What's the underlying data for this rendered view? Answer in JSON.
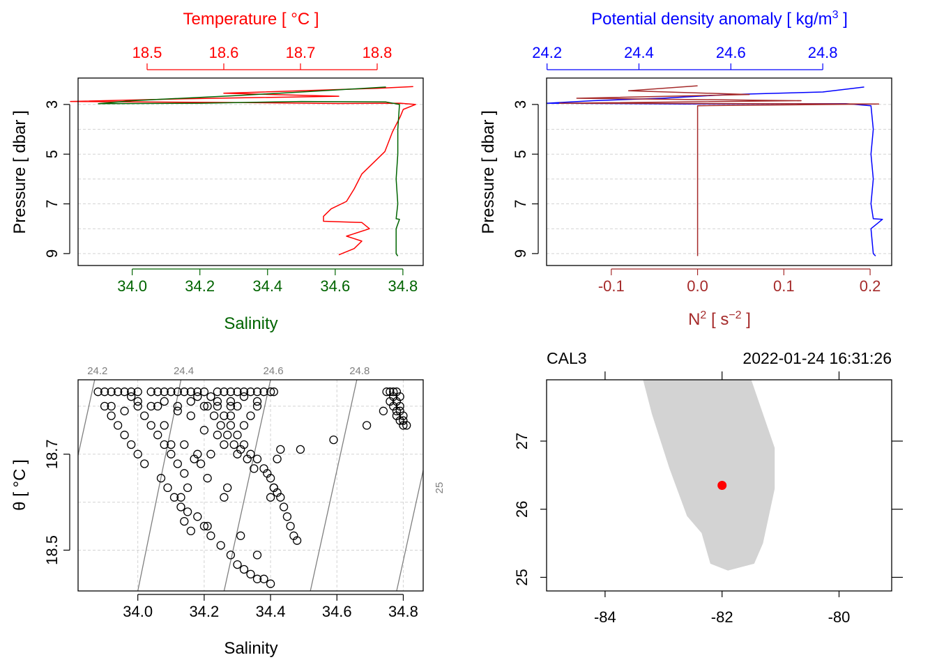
{
  "colors": {
    "temperature": "#ff0000",
    "salinity": "#006400",
    "density": "#0000ff",
    "n2": "#a52a2a",
    "grid": "#d3d3d3",
    "isopycnal": "#7f7f7f",
    "land": "#d3d3d3",
    "station": "#ff0000"
  },
  "chart_data": [
    {
      "type": "line",
      "id": "ts-profile",
      "title": "Temperature [ °C ]",
      "top_axis": {
        "label": "Temperature [ °C ]",
        "range": [
          18.41,
          18.86
        ],
        "ticks": [
          18.5,
          18.6,
          18.7,
          18.8
        ],
        "tick_labels": [
          "18.5",
          "18.6",
          "18.7",
          "18.8"
        ]
      },
      "bottom_axis": {
        "label": "Salinity",
        "range": [
          33.84,
          34.86
        ],
        "ticks": [
          34.0,
          34.2,
          34.4,
          34.6,
          34.8
        ],
        "tick_labels": [
          "34.0",
          "34.2",
          "34.4",
          "34.6",
          "34.8"
        ]
      },
      "y_axis": {
        "label": "Pressure [ dbar ]",
        "range": [
          9.2,
          2.05
        ],
        "inverted": true,
        "ticks": [
          3,
          5,
          7,
          9
        ],
        "tick_labels": [
          "3",
          "5",
          "7",
          "9"
        ],
        "grid": [
          3,
          4,
          5,
          6,
          7,
          8,
          9
        ]
      },
      "series": [
        {
          "name": "Temperature",
          "color": "#ff0000",
          "points": [
            [
              18.847,
              2.28
            ],
            [
              18.8,
              2.35
            ],
            [
              18.6,
              2.55
            ],
            [
              18.75,
              2.67
            ],
            [
              18.55,
              2.77
            ],
            [
              18.4,
              2.88
            ],
            [
              18.6,
              2.92
            ],
            [
              18.75,
              2.96
            ],
            [
              18.83,
              2.95
            ],
            [
              18.85,
              3.0
            ],
            [
              18.834,
              3.2
            ],
            [
              18.83,
              3.5
            ],
            [
              18.82,
              4.1
            ],
            [
              18.81,
              4.9
            ],
            [
              18.8,
              5.2
            ],
            [
              18.78,
              5.8
            ],
            [
              18.775,
              6.1
            ],
            [
              18.77,
              6.4
            ],
            [
              18.76,
              6.9
            ],
            [
              18.74,
              7.2
            ],
            [
              18.73,
              7.5
            ],
            [
              18.73,
              7.7
            ],
            [
              18.78,
              7.75
            ],
            [
              18.79,
              8.0
            ],
            [
              18.76,
              8.3
            ],
            [
              18.78,
              8.5
            ],
            [
              18.77,
              8.8
            ],
            [
              18.75,
              9.05
            ]
          ]
        },
        {
          "name": "Salinity",
          "color": "#006400",
          "points": [
            [
              34.75,
              2.3
            ],
            [
              34.5,
              2.5
            ],
            [
              34.3,
              2.65
            ],
            [
              34.0,
              2.85
            ],
            [
              33.9,
              2.97
            ],
            [
              34.2,
              2.95
            ],
            [
              34.5,
              2.88
            ],
            [
              34.75,
              2.9
            ],
            [
              34.79,
              3.0
            ],
            [
              34.785,
              4.0
            ],
            [
              34.785,
              5.0
            ],
            [
              34.78,
              6.0
            ],
            [
              34.785,
              7.0
            ],
            [
              34.78,
              7.6
            ],
            [
              34.79,
              7.62
            ],
            [
              34.78,
              8.0
            ],
            [
              34.78,
              9.0
            ],
            [
              34.785,
              9.1
            ]
          ]
        }
      ]
    },
    {
      "type": "line",
      "id": "density-n2-profile",
      "title": "Potential density anomaly [ kg/m³ ]",
      "top_axis": {
        "label": "Potential density anomaly [ kg/m",
        "label_sup": "3",
        "label_end": " ]",
        "range": [
          24.199,
          24.95
        ],
        "ticks": [
          24.2,
          24.4,
          24.6,
          24.8
        ],
        "tick_labels": [
          "24.2",
          "24.4",
          "24.6",
          "24.8"
        ]
      },
      "bottom_axis": {
        "label": "N",
        "label_sup": "2",
        "label_end": " [ s",
        "label_sup2": "−2",
        "label_end2": " ]",
        "range": [
          -0.175,
          0.225
        ],
        "ticks": [
          -0.1,
          0.0,
          0.1,
          0.2
        ],
        "tick_labels": [
          "-0.1",
          "0.0",
          "0.1",
          "0.2"
        ]
      },
      "y_axis": {
        "label": "Pressure [ dbar ]",
        "range": [
          9.2,
          2.05
        ],
        "inverted": true,
        "ticks": [
          3,
          5,
          7,
          9
        ],
        "tick_labels": [
          "3",
          "5",
          "7",
          "9"
        ],
        "grid": [
          3,
          4,
          5,
          6,
          7,
          8,
          9
        ]
      },
      "series": [
        {
          "name": "Potential density anomaly",
          "color": "#0000ff",
          "points": [
            [
              24.89,
              2.3
            ],
            [
              24.8,
              2.5
            ],
            [
              24.6,
              2.6
            ],
            [
              24.45,
              2.75
            ],
            [
              24.3,
              2.85
            ],
            [
              24.2,
              2.95
            ],
            [
              24.5,
              2.98
            ],
            [
              24.85,
              2.97
            ],
            [
              24.905,
              3.05
            ],
            [
              24.91,
              4.0
            ],
            [
              24.905,
              5.0
            ],
            [
              24.91,
              6.0
            ],
            [
              24.905,
              7.0
            ],
            [
              24.91,
              7.6
            ],
            [
              24.93,
              7.62
            ],
            [
              24.905,
              8.0
            ],
            [
              24.91,
              9.0
            ],
            [
              24.915,
              9.1
            ]
          ]
        },
        {
          "name": "N2",
          "color": "#a52a2a",
          "points": [
            [
              0.0,
              2.25
            ],
            [
              -0.08,
              2.45
            ],
            [
              0.06,
              2.6
            ],
            [
              -0.14,
              2.75
            ],
            [
              0.12,
              2.85
            ],
            [
              -0.16,
              2.95
            ],
            [
              0.21,
              2.98
            ],
            [
              0.0,
              3.05
            ],
            [
              0.0,
              4.0
            ],
            [
              0.0,
              5.0
            ],
            [
              0.0,
              6.0
            ],
            [
              0.0,
              7.0
            ],
            [
              0.0,
              7.65
            ],
            [
              0.0,
              8.0
            ],
            [
              0.0,
              9.1
            ]
          ]
        }
      ]
    },
    {
      "type": "scatter",
      "id": "ts-diagram",
      "x_axis": {
        "label": "Salinity",
        "range": [
          33.82,
          34.86
        ],
        "ticks": [
          34.0,
          34.2,
          34.4,
          34.6,
          34.8
        ],
        "tick_labels": [
          "34.0",
          "34.2",
          "34.4",
          "34.6",
          "34.8"
        ]
      },
      "y_axis": {
        "label": "θ [ °C ]",
        "range": [
          18.415,
          18.855
        ],
        "ticks": [
          18.5,
          18.7
        ],
        "tick_labels": [
          "18.5",
          "18.7"
        ],
        "grid": [
          18.5,
          18.6,
          18.7,
          18.8
        ]
      },
      "isopycnals": [
        {
          "label": "24.2",
          "s_at_top": 33.87,
          "s_at_bottom": 33.73
        },
        {
          "label": "24.4",
          "s_at_top": 34.13,
          "s_at_bottom": 34.0
        },
        {
          "label": "24.6",
          "s_at_top": 34.4,
          "s_at_bottom": 34.26
        },
        {
          "label": "24.8",
          "s_at_top": 34.66,
          "s_at_bottom": 34.52
        },
        {
          "label": "25",
          "s_at_top": 34.92,
          "s_at_bottom": 34.78
        }
      ],
      "points": [
        [
          34.4,
          18.43
        ],
        [
          34.38,
          18.44
        ],
        [
          34.36,
          18.44
        ],
        [
          34.34,
          18.45
        ],
        [
          34.32,
          18.46
        ],
        [
          34.3,
          18.47
        ],
        [
          34.28,
          18.49
        ],
        [
          34.25,
          18.51
        ],
        [
          34.22,
          18.53
        ],
        [
          34.2,
          18.55
        ],
        [
          34.18,
          18.57
        ],
        [
          34.15,
          18.58
        ],
        [
          34.13,
          18.59
        ],
        [
          34.11,
          18.61
        ],
        [
          34.09,
          18.63
        ],
        [
          34.07,
          18.65
        ],
        [
          34.36,
          18.49
        ],
        [
          34.31,
          18.53
        ],
        [
          34.26,
          18.61
        ],
        [
          34.21,
          18.65
        ],
        [
          34.17,
          18.69
        ],
        [
          34.14,
          18.72
        ],
        [
          34.48,
          18.52
        ],
        [
          34.47,
          18.53
        ],
        [
          34.46,
          18.55
        ],
        [
          34.45,
          18.57
        ],
        [
          34.44,
          18.59
        ],
        [
          34.43,
          18.61
        ],
        [
          34.42,
          18.62
        ],
        [
          34.41,
          18.63
        ],
        [
          34.4,
          18.65
        ],
        [
          34.39,
          18.66
        ],
        [
          34.38,
          18.67
        ],
        [
          34.36,
          18.69
        ],
        [
          34.34,
          18.7
        ],
        [
          34.32,
          18.72
        ],
        [
          34.3,
          18.74
        ],
        [
          34.28,
          18.76
        ],
        [
          34.26,
          18.78
        ],
        [
          34.24,
          18.8
        ],
        [
          34.22,
          18.82
        ],
        [
          34.4,
          18.61
        ],
        [
          34.41,
          18.63
        ],
        [
          34.42,
          18.69
        ],
        [
          34.43,
          18.71
        ],
        [
          34.49,
          18.71
        ],
        [
          34.59,
          18.73
        ],
        [
          34.69,
          18.76
        ],
        [
          34.74,
          18.79
        ],
        [
          34.35,
          18.67
        ],
        [
          34.33,
          18.69
        ],
        [
          34.31,
          18.71
        ],
        [
          34.29,
          18.72
        ],
        [
          34.27,
          18.74
        ],
        [
          34.25,
          18.76
        ],
        [
          34.23,
          18.78
        ],
        [
          34.21,
          18.8
        ],
        [
          34.27,
          18.63
        ],
        [
          34.19,
          18.68
        ],
        [
          34.15,
          18.63
        ],
        [
          34.13,
          18.61
        ],
        [
          34.14,
          18.56
        ],
        [
          34.16,
          18.54
        ],
        [
          34.21,
          18.55
        ],
        [
          34.3,
          18.7
        ],
        [
          34.1,
          18.7
        ],
        [
          34.08,
          18.72
        ],
        [
          34.06,
          18.74
        ],
        [
          34.04,
          18.76
        ],
        [
          34.02,
          18.78
        ],
        [
          34.0,
          18.8
        ],
        [
          33.98,
          18.82
        ],
        [
          34.02,
          18.68
        ],
        [
          34.0,
          18.7
        ],
        [
          33.98,
          18.72
        ],
        [
          33.96,
          18.74
        ],
        [
          33.94,
          18.76
        ],
        [
          33.92,
          18.78
        ],
        [
          33.9,
          18.8
        ],
        [
          34.14,
          18.66
        ],
        [
          34.12,
          18.68
        ],
        [
          34.1,
          18.72
        ],
        [
          34.08,
          18.76
        ],
        [
          34.06,
          18.8
        ],
        [
          34.18,
          18.7
        ],
        [
          34.2,
          18.75
        ],
        [
          34.22,
          18.7
        ],
        [
          34.24,
          18.74
        ],
        [
          34.26,
          18.72
        ],
        [
          34.28,
          18.78
        ],
        [
          34.16,
          18.78
        ],
        [
          34.12,
          18.8
        ],
        [
          34.18,
          18.82
        ],
        [
          34.32,
          18.76
        ],
        [
          34.34,
          18.78
        ],
        [
          34.36,
          18.8
        ],
        [
          34.3,
          18.8
        ],
        [
          34.28,
          18.81
        ],
        [
          33.88,
          18.83
        ],
        [
          33.9,
          18.83
        ],
        [
          33.92,
          18.83
        ],
        [
          33.94,
          18.83
        ],
        [
          33.96,
          18.83
        ],
        [
          33.98,
          18.83
        ],
        [
          34.0,
          18.83
        ],
        [
          34.04,
          18.83
        ],
        [
          34.06,
          18.83
        ],
        [
          34.08,
          18.83
        ],
        [
          34.1,
          18.83
        ],
        [
          34.12,
          18.83
        ],
        [
          34.14,
          18.83
        ],
        [
          34.16,
          18.83
        ],
        [
          34.18,
          18.83
        ],
        [
          34.2,
          18.83
        ],
        [
          34.24,
          18.83
        ],
        [
          34.26,
          18.83
        ],
        [
          34.28,
          18.83
        ],
        [
          34.3,
          18.83
        ],
        [
          34.32,
          18.83
        ],
        [
          34.34,
          18.83
        ],
        [
          34.36,
          18.83
        ],
        [
          34.38,
          18.83
        ],
        [
          34.4,
          18.83
        ],
        [
          34.41,
          18.83
        ],
        [
          33.92,
          18.8
        ],
        [
          33.96,
          18.79
        ],
        [
          34.0,
          18.81
        ],
        [
          34.04,
          18.8
        ],
        [
          34.08,
          18.81
        ],
        [
          34.12,
          18.79
        ],
        [
          34.16,
          18.81
        ],
        [
          34.2,
          18.8
        ],
        [
          34.24,
          18.81
        ],
        [
          34.28,
          18.8
        ],
        [
          34.32,
          18.82
        ],
        [
          34.36,
          18.81
        ],
        [
          34.75,
          18.83
        ],
        [
          34.76,
          18.83
        ],
        [
          34.77,
          18.83
        ],
        [
          34.78,
          18.83
        ],
        [
          34.79,
          18.82
        ],
        [
          34.77,
          18.82
        ],
        [
          34.76,
          18.81
        ],
        [
          34.78,
          18.81
        ],
        [
          34.79,
          18.8
        ],
        [
          34.77,
          18.8
        ],
        [
          34.78,
          18.79
        ],
        [
          34.79,
          18.79
        ],
        [
          34.78,
          18.78
        ],
        [
          34.8,
          18.78
        ],
        [
          34.79,
          18.77
        ],
        [
          34.8,
          18.77
        ],
        [
          34.81,
          18.76
        ],
        [
          34.8,
          18.76
        ]
      ]
    },
    {
      "type": "scatter",
      "id": "station-map",
      "station": "CAL3",
      "datetime": "2022-01-24 16:31:26",
      "x_axis": {
        "range": [
          -85.0,
          -79.1
        ],
        "ticks": [
          -84,
          -82,
          -80
        ],
        "tick_labels": [
          "-84",
          "-82",
          "-80"
        ]
      },
      "y_axis": {
        "range": [
          24.8,
          27.9
        ],
        "ticks": [
          25,
          26,
          27
        ],
        "tick_labels": [
          "25",
          "26",
          "27"
        ]
      },
      "station_position": {
        "lon": -82.0,
        "lat": 26.35
      },
      "land_outline": [
        [
          -82.85,
          27.9
        ],
        [
          -81.5,
          27.9
        ],
        [
          -81.3,
          27.4
        ],
        [
          -81.1,
          26.9
        ],
        [
          -81.1,
          26.3
        ],
        [
          -81.3,
          25.5
        ],
        [
          -81.45,
          25.2
        ],
        [
          -81.9,
          25.1
        ],
        [
          -82.2,
          25.2
        ],
        [
          -82.35,
          25.65
        ],
        [
          -82.6,
          25.9
        ],
        [
          -82.9,
          26.6
        ],
        [
          -83.2,
          27.4
        ],
        [
          -83.35,
          27.9
        ]
      ]
    }
  ]
}
